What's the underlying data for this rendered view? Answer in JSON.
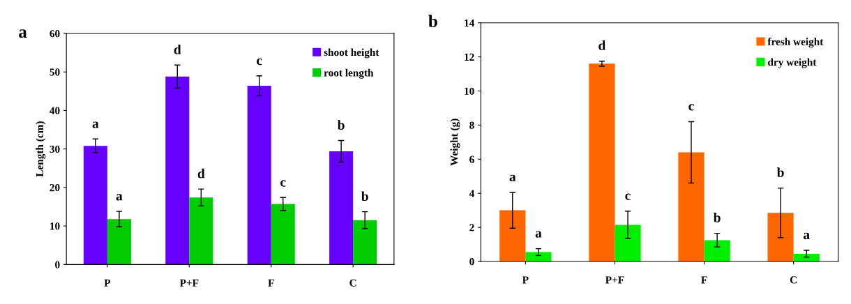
{
  "chart_data": [
    {
      "type": "bar",
      "title": "a",
      "ylabel": "Length (cm)",
      "categories": [
        "P",
        "P+F",
        "F",
        "C"
      ],
      "ylim": [
        0,
        60
      ],
      "yticks": [
        0,
        10,
        20,
        30,
        40,
        50,
        60
      ],
      "grid": false,
      "legend": "top right",
      "series": [
        {
          "name": "shoot height",
          "color": "#6600ff",
          "values": [
            30.8,
            48.8,
            46.4,
            29.4
          ],
          "errors": [
            1.8,
            3,
            2.6,
            2.8
          ],
          "value_labels": [
            "a",
            "d",
            "c",
            "b"
          ]
        },
        {
          "name": "root length",
          "color": "#00cc00",
          "values": [
            11.8,
            17.4,
            15.7,
            11.5
          ],
          "errors": [
            2,
            2.2,
            1.7,
            2.2
          ],
          "value_labels": [
            "a",
            "d",
            "c",
            "b"
          ]
        }
      ]
    },
    {
      "type": "bar",
      "title": "b",
      "ylabel": "Weight (g)",
      "categories": [
        "P",
        "P+F",
        "F",
        "C"
      ],
      "ylim": [
        0,
        14
      ],
      "yticks": [
        0,
        2,
        4,
        6,
        8,
        10,
        12,
        14
      ],
      "grid": false,
      "legend": "top right",
      "series": [
        {
          "name": "fresh weight",
          "color": "#ff6600",
          "values": [
            3.0,
            11.6,
            6.4,
            2.85
          ],
          "errors": [
            1.05,
            0.15,
            1.8,
            1.45
          ],
          "value_labels": [
            "a",
            "d",
            "c",
            "b"
          ]
        },
        {
          "name": "dry weight",
          "color": "#00ee00",
          "values": [
            0.55,
            2.15,
            1.25,
            0.45
          ],
          "errors": [
            0.2,
            0.8,
            0.4,
            0.2
          ],
          "value_labels": [
            "a",
            "c",
            "b",
            "a"
          ]
        }
      ]
    }
  ]
}
